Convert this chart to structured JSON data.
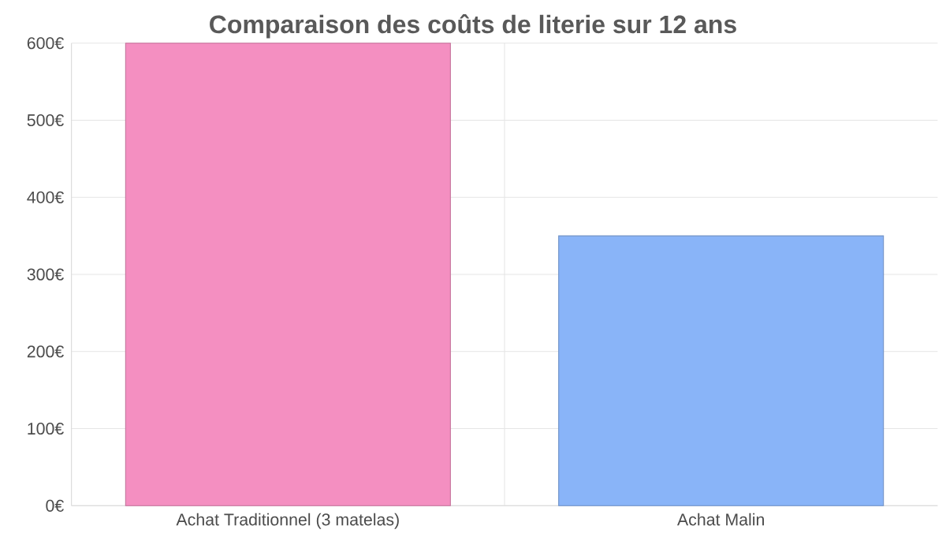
{
  "chart_data": {
    "type": "bar",
    "title": "Comparaison des coûts de literie sur 12 ans",
    "categories": [
      "Achat Traditionnel (3 matelas)",
      "Achat Malin"
    ],
    "values": [
      600,
      350
    ],
    "colors": [
      "#f48fc1",
      "#89b4f8"
    ],
    "ylim": [
      0,
      600
    ],
    "yticks": [
      {
        "value": 0,
        "label": "0€"
      },
      {
        "value": 100,
        "label": "100€"
      },
      {
        "value": 200,
        "label": "200€"
      },
      {
        "value": 300,
        "label": "300€"
      },
      {
        "value": 400,
        "label": "400€"
      },
      {
        "value": 500,
        "label": "500€"
      },
      {
        "value": 600,
        "label": "600€"
      }
    ],
    "grid": true
  }
}
